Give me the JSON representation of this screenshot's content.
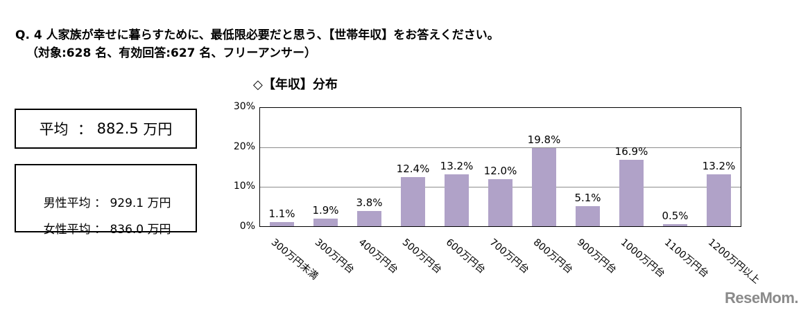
{
  "header": {
    "question": "Q. 4 人家族が幸せに暮らすために、最低限必要だと思う、【世帯年収】をお答えください。",
    "subnote": "（対象:628 名、有効回答:627 名、フリーアンサー）"
  },
  "summary": {
    "overall": {
      "label": "平均",
      "separator": "：",
      "value": "882.5",
      "unit": "万円"
    },
    "male": {
      "label": "男性平均",
      "separator": "：",
      "value": "929.1",
      "unit": "万円"
    },
    "female": {
      "label": "女性平均",
      "separator": "：",
      "value": "836.0",
      "unit": "万円"
    }
  },
  "watermark": "ReseMom.",
  "chart_data": {
    "type": "bar",
    "title": "◇【年収】分布",
    "xlabel": "",
    "ylabel": "",
    "ylim": [
      0,
      30
    ],
    "yticks": [
      "0%",
      "10%",
      "20%",
      "30%"
    ],
    "grid": true,
    "bar_color": "#b0a2c8",
    "categories": [
      "300万円未満",
      "300万円台",
      "400万円台",
      "500万円台",
      "600万円台",
      "700万円台",
      "800万円台",
      "900万円台",
      "1000万円台",
      "1100万円台",
      "1200万円以上"
    ],
    "values": [
      1.1,
      1.9,
      3.8,
      12.4,
      13.2,
      12.0,
      19.8,
      5.1,
      16.9,
      0.5,
      13.2
    ],
    "value_labels": [
      "1.1%",
      "1.9%",
      "3.8%",
      "12.4%",
      "13.2%",
      "12.0%",
      "19.8%",
      "5.1%",
      "16.9%",
      "0.5%",
      "13.2%"
    ]
  }
}
